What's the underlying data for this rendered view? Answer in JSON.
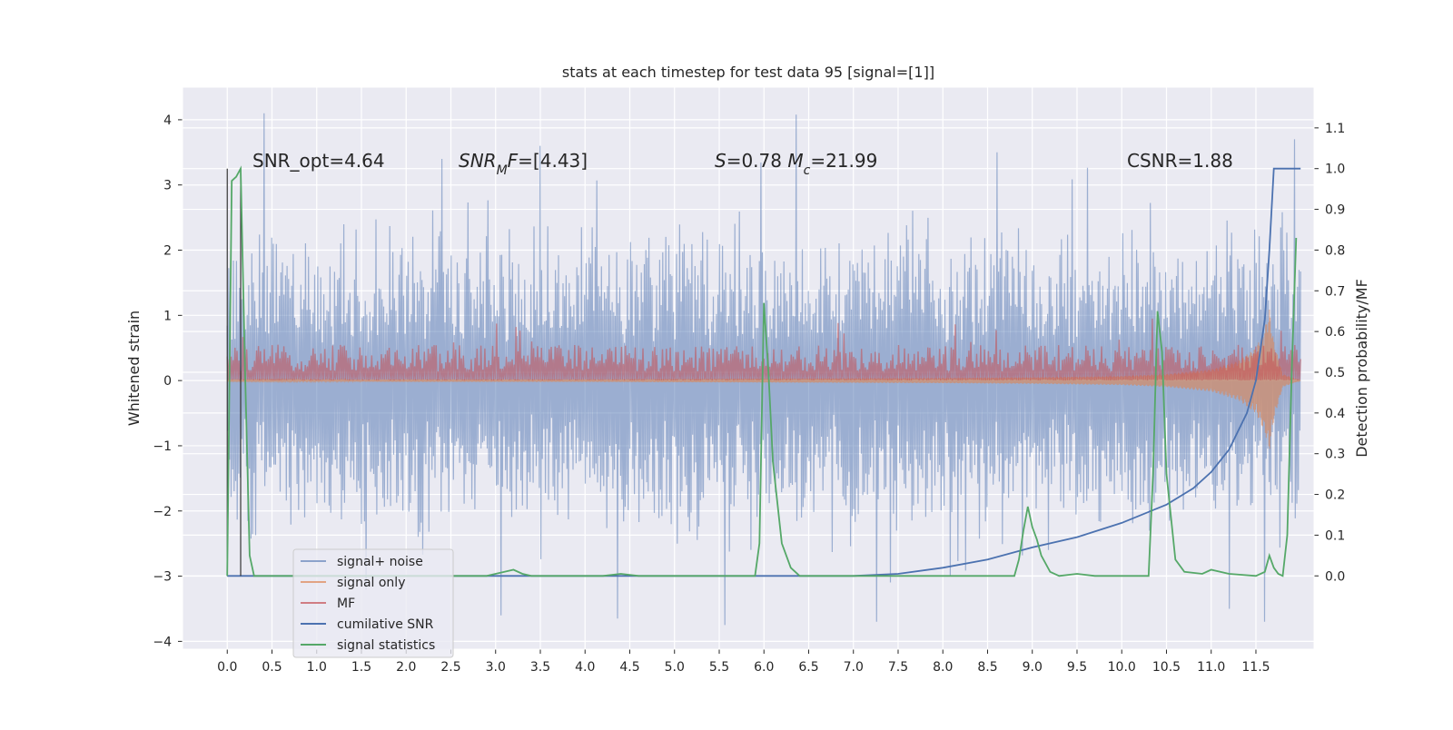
{
  "chart_data": {
    "type": "line",
    "title": "stats at each timestep for test data 95 [signal=[1]]",
    "xlabel": "",
    "ylabel": "Whitened strain",
    "y2label": "Detection probability/MF",
    "xlim": [
      -0.5,
      12.15
    ],
    "ylim": [
      -4.12,
      4.5
    ],
    "y2lim": [
      -0.18,
      1.2
    ],
    "xticks": [
      0.0,
      0.5,
      1.0,
      1.5,
      2.0,
      2.5,
      3.0,
      3.5,
      4.0,
      4.5,
      5.0,
      5.5,
      6.0,
      6.5,
      7.0,
      7.5,
      8.0,
      8.5,
      9.0,
      9.5,
      10.0,
      10.5,
      11.0,
      11.5
    ],
    "xtick_labels": [
      "0.0",
      "0.5",
      "1.0",
      "1.5",
      "2.0",
      "2.5",
      "3.0",
      "3.5",
      "4.0",
      "4.5",
      "5.0",
      "5.5",
      "6.0",
      "6.5",
      "7.0",
      "7.5",
      "8.0",
      "8.5",
      "9.0",
      "9.5",
      "10.0",
      "10.5",
      "11.0",
      "11.5"
    ],
    "yticks": [
      4,
      3,
      2,
      1,
      0,
      -1,
      -2,
      -3,
      -4
    ],
    "ytick_labels": [
      "4",
      "3",
      "2",
      "1",
      "0",
      "−1",
      "−2",
      "−3",
      "−4"
    ],
    "y2ticks": [
      1.1,
      1.0,
      0.9,
      0.8,
      0.7,
      0.6,
      0.5,
      0.4,
      0.3,
      0.2,
      0.1,
      0.0
    ],
    "y2tick_labels": [
      "1.1",
      "1.0",
      "0.9",
      "0.8",
      "0.7",
      "0.6",
      "0.5",
      "0.4",
      "0.3",
      "0.2",
      "0.1",
      "0.0"
    ],
    "grid": true,
    "legend_position": "lower-left",
    "colors": {
      "signal_noise": "#4c72b0",
      "signal_only": "#dd8452",
      "mf": "#c44e52",
      "cumulative_snr": "#4c72b0",
      "signal_statistics": "#55a868",
      "plot_bg": "#eaeaf2"
    },
    "annotations": [
      {
        "text": "SNR_opt=4.64"
      },
      {
        "text": "SNR_MF=[4.43]"
      },
      {
        "text": "S=0.78   M_c=21.99"
      },
      {
        "text": "CSNR=1.88"
      }
    ],
    "series": [
      {
        "name": "signal+ noise",
        "axis": "left",
        "style": "dense-noise",
        "x_range": [
          0.0,
          12.0
        ],
        "envelope_typical": [
          -2.5,
          2.5
        ],
        "peaks": [
          {
            "x": 0.4,
            "y": 4.1
          },
          {
            "x": 6.35,
            "y": 4.08
          },
          {
            "x": 11.93,
            "y": 3.7
          },
          {
            "x": 3.5,
            "y": 3.6
          },
          {
            "x": 8.6,
            "y": 3.5
          },
          {
            "x": 2.4,
            "y": 3.4
          }
        ],
        "troughs": [
          {
            "x": 5.55,
            "y": -3.75
          },
          {
            "x": 11.6,
            "y": -3.7
          },
          {
            "x": 7.25,
            "y": -3.7
          },
          {
            "x": 4.35,
            "y": -3.65
          },
          {
            "x": 3.05,
            "y": -3.6
          },
          {
            "x": 11.2,
            "y": -3.5
          }
        ]
      },
      {
        "name": "signal only",
        "axis": "left",
        "style": "chirp",
        "x": [
          0.0,
          2.0,
          4.0,
          6.0,
          8.0,
          9.0,
          10.0,
          10.5,
          11.0,
          11.3,
          11.5,
          11.6,
          11.65,
          11.7,
          11.8,
          12.0
        ],
        "amplitude": [
          0.01,
          0.02,
          0.02,
          0.03,
          0.04,
          0.05,
          0.07,
          0.1,
          0.17,
          0.3,
          0.5,
          0.8,
          1.1,
          0.6,
          0.1,
          0.0
        ]
      },
      {
        "name": "MF",
        "axis": "left",
        "style": "dense-positive",
        "x_range": [
          0.0,
          12.0
        ],
        "typical_max": 0.55,
        "peak_max": 1.0
      },
      {
        "name": "cumilative SNR",
        "axis": "right",
        "x": [
          0.0,
          0.15,
          0.15,
          7.0,
          7.5,
          8.0,
          8.5,
          9.0,
          9.5,
          10.0,
          10.5,
          10.8,
          11.0,
          11.2,
          11.4,
          11.5,
          11.6,
          11.65,
          11.7,
          12.0
        ],
        "y": [
          0.0,
          0.0,
          0.0,
          0.0,
          0.005,
          0.02,
          0.04,
          0.07,
          0.095,
          0.13,
          0.175,
          0.215,
          0.255,
          0.31,
          0.4,
          0.48,
          0.63,
          0.8,
          1.0,
          1.0
        ]
      },
      {
        "name": "signal statistics",
        "axis": "right",
        "x": [
          0.0,
          0.05,
          0.1,
          0.15,
          0.2,
          0.25,
          0.3,
          2.9,
          3.0,
          3.1,
          3.2,
          3.3,
          3.4,
          4.2,
          4.4,
          4.6,
          5.9,
          5.95,
          6.0,
          6.05,
          6.1,
          6.15,
          6.2,
          6.3,
          6.4,
          6.5,
          8.8,
          8.85,
          8.9,
          8.95,
          9.0,
          9.05,
          9.1,
          9.2,
          9.3,
          9.5,
          9.7,
          10.3,
          10.35,
          10.4,
          10.45,
          10.5,
          10.6,
          10.7,
          10.9,
          11.0,
          11.2,
          11.5,
          11.6,
          11.65,
          11.7,
          11.75,
          11.8,
          11.85,
          11.9,
          11.95
        ],
        "y": [
          0.0,
          0.97,
          0.98,
          1.0,
          0.5,
          0.05,
          0.0,
          0.0,
          0.005,
          0.01,
          0.015,
          0.005,
          0.0,
          0.0,
          0.005,
          0.0,
          0.0,
          0.08,
          0.67,
          0.5,
          0.28,
          0.18,
          0.08,
          0.02,
          0.0,
          0.0,
          0.0,
          0.04,
          0.11,
          0.17,
          0.12,
          0.09,
          0.05,
          0.01,
          0.0,
          0.005,
          0.0,
          0.0,
          0.25,
          0.65,
          0.55,
          0.25,
          0.04,
          0.01,
          0.005,
          0.015,
          0.005,
          0.0,
          0.01,
          0.05,
          0.02,
          0.005,
          0.0,
          0.1,
          0.5,
          0.83
        ]
      }
    ]
  }
}
